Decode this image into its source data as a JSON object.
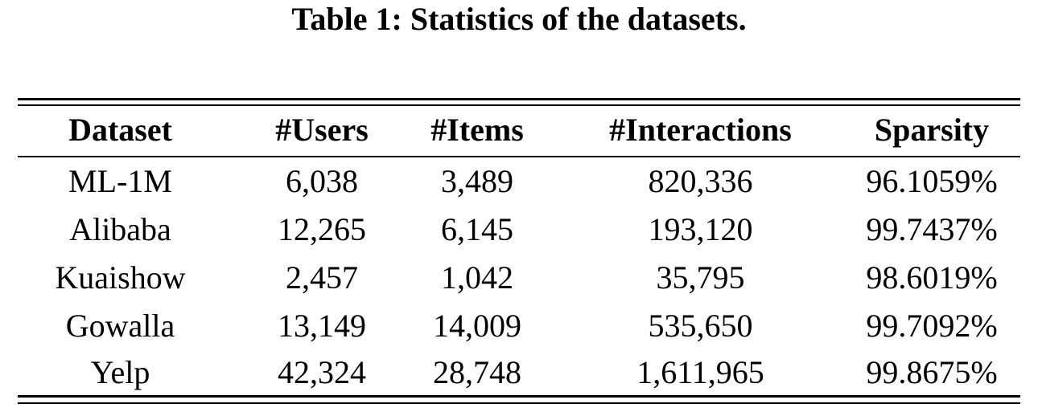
{
  "caption": "Table 1: Statistics of the datasets.",
  "table": {
    "headers": [
      "Dataset",
      "#Users",
      "#Items",
      "#Interactions",
      "Sparsity"
    ],
    "rows": [
      [
        "ML-1M",
        "6,038",
        "3,489",
        "820,336",
        "96.1059%"
      ],
      [
        "Alibaba",
        "12,265",
        "6,145",
        "193,120",
        "99.7437%"
      ],
      [
        "Kuaishow",
        "2,457",
        "1,042",
        "35,795",
        "98.6019%"
      ],
      [
        "Gowalla",
        "13,149",
        "14,009",
        "535,650",
        "99.7092%"
      ],
      [
        "Yelp",
        "42,324",
        "28,748",
        "1,611,965",
        "99.8675%"
      ]
    ]
  }
}
